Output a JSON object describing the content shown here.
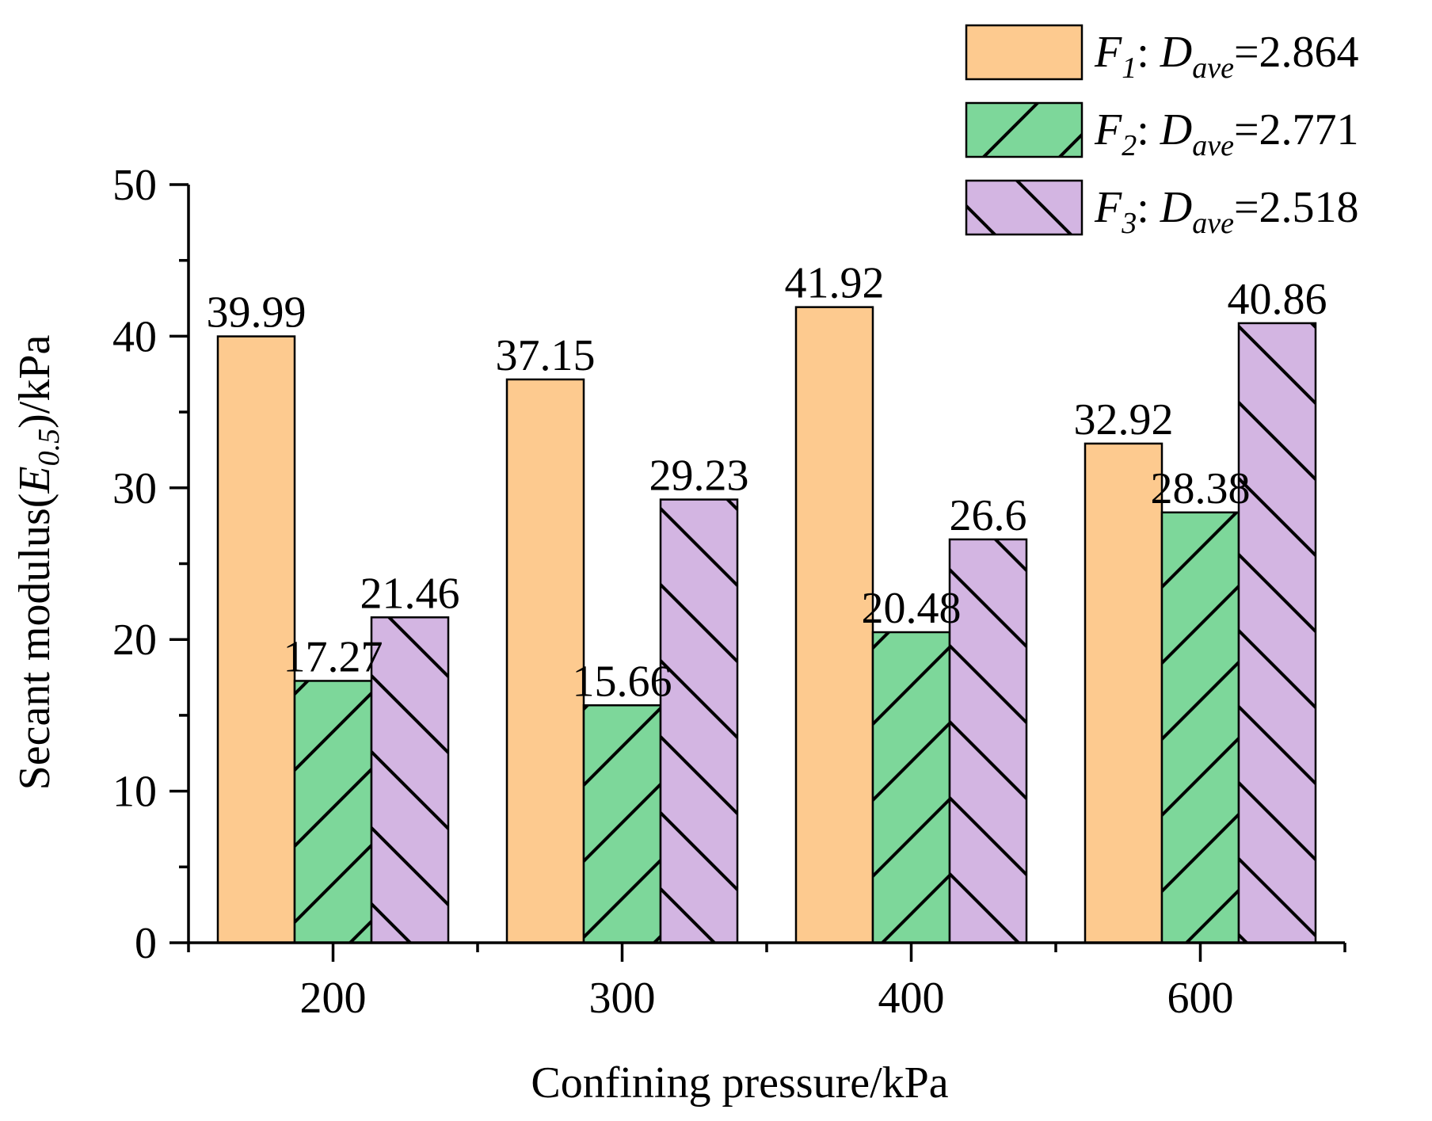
{
  "chart_data": {
    "type": "bar",
    "title": "",
    "xlabel": "Confining pressure/kPa",
    "ylabel": {
      "prefix": "Secant modulus(",
      "var": "E",
      "sub": "0.5",
      "suffix": ")/kPa"
    },
    "ylim": [
      0,
      50
    ],
    "yticks": [
      "0",
      "10",
      "20",
      "30",
      "40",
      "50"
    ],
    "categories": [
      "200",
      "300",
      "400",
      "600"
    ],
    "series": [
      {
        "name": "F1",
        "legend": {
          "var": "F",
          "idx": "1",
          "sep": ": ",
          "dvar": "D",
          "dsub": "ave",
          "value": "=2.864"
        },
        "values": [
          39.99,
          37.15,
          41.92,
          32.92
        ],
        "labels": [
          "39.99",
          "37.15",
          "41.92",
          "32.92"
        ],
        "color": "#fdca8f",
        "pattern": "none"
      },
      {
        "name": "F2",
        "legend": {
          "var": "F",
          "idx": "2",
          "sep": ": ",
          "dvar": "D",
          "dsub": "ave",
          "value": "=2.771"
        },
        "values": [
          17.27,
          15.66,
          20.48,
          28.38
        ],
        "labels": [
          "17.27",
          "15.66",
          "20.48",
          "28.38"
        ],
        "color": "#7dd79a",
        "pattern": "forward-diagonal"
      },
      {
        "name": "F3",
        "legend": {
          "var": "F",
          "idx": "3",
          "sep": ": ",
          "dvar": "D",
          "dsub": "ave",
          "value": "=2.518"
        },
        "values": [
          21.46,
          29.23,
          26.6,
          40.86
        ],
        "labels": [
          "21.46",
          "29.23",
          "26.6",
          "40.86"
        ],
        "color": "#d3b5e2",
        "pattern": "back-diagonal"
      }
    ]
  }
}
